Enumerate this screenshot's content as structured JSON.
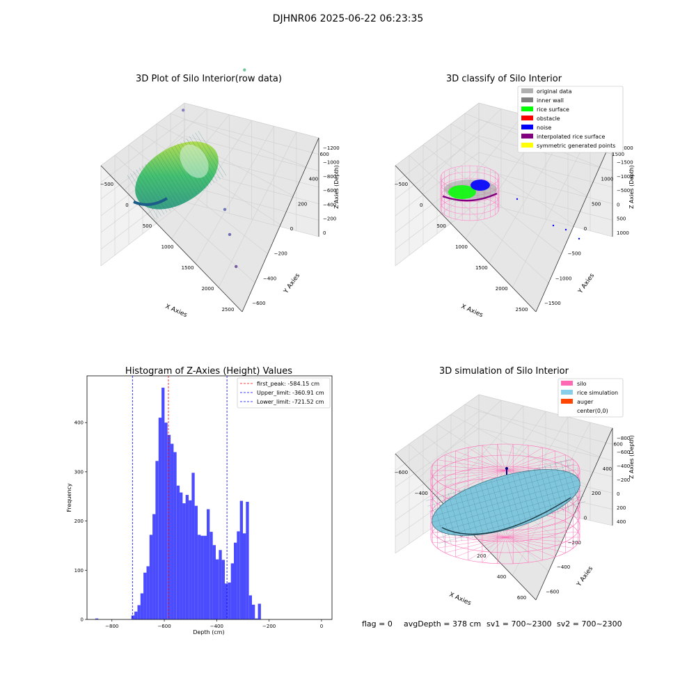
{
  "suptitle": "DJHNR06 2025-06-22 06:23:35",
  "footer": {
    "flag": "flag = 0",
    "avg_depth": "avgDepth = 378 cm",
    "sv1": "sv1 = 700~2300",
    "sv2": "sv2 = 700~2300"
  },
  "chart_data": [
    {
      "id": "raw",
      "type": "scatter",
      "projection": "3d",
      "title": "3D Plot of Silo Interior(row data)",
      "xlabel": "X Axies",
      "ylabel": "Y Axies",
      "zlabel": "Z Axies (Depth)",
      "xticks": [
        "−500",
        "0",
        "500",
        "1000",
        "1500",
        "2000",
        "2500"
      ],
      "yticks": [
        "−600",
        "−400",
        "−200",
        "0",
        "200",
        "400",
        "600"
      ],
      "zticks": [
        "0",
        "−200",
        "−400",
        "−600",
        "−800",
        "−1000",
        "−1200"
      ],
      "xlim": [
        -600,
        2600
      ],
      "ylim": [
        -650,
        650
      ],
      "zlim": [
        -1300,
        50
      ],
      "grid": true,
      "outliers": [
        {
          "x": 2260,
          "y": -500,
          "z": -1150
        },
        {
          "x": 1950,
          "y": -380,
          "z": -1080
        },
        {
          "x": 1700,
          "y": -280,
          "z": -1020
        },
        {
          "x": -250,
          "y": 400,
          "z": -1150
        },
        {
          "x": 1050,
          "y": 500,
          "z": -420
        }
      ]
    },
    {
      "id": "classify",
      "type": "scatter",
      "projection": "3d",
      "title": "3D classify of Silo Interior",
      "xlabel": "X Axies",
      "ylabel": "Y Axies",
      "zlabel": "Z Axies (Depth)",
      "xticks": [
        "−500",
        "0",
        "500",
        "1000",
        "1500",
        "2000",
        "2500"
      ],
      "yticks": [
        "−1500",
        "−1000",
        "−500",
        "0",
        "500",
        "1000",
        "1500"
      ],
      "zticks": [
        "1000",
        "500",
        "0",
        "−500",
        "−1000",
        "−1500",
        "−2000"
      ],
      "xlim": [
        -600,
        2600
      ],
      "ylim": [
        -1600,
        1600
      ],
      "zlim": [
        -2000,
        1000
      ],
      "grid": true,
      "legend": {
        "placement": "upper right",
        "entries": [
          {
            "label": "original data",
            "color": "#b0b0b0"
          },
          {
            "label": "inner wall",
            "color": "#808080"
          },
          {
            "label": "rice surface",
            "color": "#00ff00"
          },
          {
            "label": "obstacle",
            "color": "#ff0000"
          },
          {
            "label": "noise",
            "color": "#0000ff"
          },
          {
            "label": "interpolated rice surface",
            "color": "#800080"
          },
          {
            "label": "symmetric generated points",
            "color": "#ffff00"
          }
        ]
      }
    },
    {
      "id": "hist",
      "type": "bar",
      "title": "Histogram of Z-Axies (Height) Values",
      "xlabel": "Depth (cm)",
      "ylabel": "Frequency",
      "xlim": [
        -895,
        40
      ],
      "ylim": [
        0,
        495
      ],
      "xticks": [
        -800,
        -600,
        -400,
        -200,
        0
      ],
      "yticks": [
        0,
        100,
        200,
        300,
        400
      ],
      "bar_color": "#0000ff",
      "bins": {
        "start": -863.5,
        "width": 11.5,
        "counts": [
          2,
          0,
          0,
          0,
          0,
          0,
          0,
          0,
          0,
          0,
          0,
          0,
          8,
          16,
          29,
          53,
          95,
          108,
          172,
          214,
          322,
          410,
          471,
          400,
          375,
          357,
          340,
          272,
          258,
          236,
          253,
          242,
          298,
          231,
          172,
          170,
          170,
          224,
          178,
          151,
          122,
          141,
          121,
          73,
          75,
          114,
          156,
          179,
          241,
          175,
          239,
          49,
          30,
          2,
          32
        ]
      },
      "vlines": [
        {
          "x": -584.15,
          "color": "#ff0000",
          "label": "first_peak: -584.15 cm"
        },
        {
          "x": -360.91,
          "color": "#0000ff",
          "label": "Upper_limit: -360.91 cm"
        },
        {
          "x": -721.52,
          "color": "#0000ff",
          "label": "Lower_limit: -721.52 cm"
        }
      ],
      "legend": {
        "placement": "upper right"
      }
    },
    {
      "id": "sim",
      "type": "surface",
      "projection": "3d",
      "title": "3D simulation of Silo Interior",
      "xlabel": "X Axies",
      "ylabel": "Y Axies",
      "zlabel": "Z Axies (Depth)",
      "xticks": [
        "−600",
        "−400",
        "−200",
        "0",
        "200",
        "400",
        "600"
      ],
      "yticks": [
        "−600",
        "−400",
        "−200",
        "0",
        "200",
        "400",
        "600"
      ],
      "zticks": [
        "400",
        "200",
        "0",
        "−200",
        "−400",
        "−600",
        "−800"
      ],
      "xlim": [
        -700,
        700
      ],
      "ylim": [
        -700,
        700
      ],
      "zlim": [
        -900,
        450
      ],
      "grid": true,
      "legend": {
        "placement": "upper right",
        "entries": [
          {
            "label": "silo",
            "color": "#ff69b4"
          },
          {
            "label": "rice simulation",
            "color": "#87ceeb"
          },
          {
            "label": "auger",
            "color": "#ff4500"
          },
          {
            "label": "center(0,0)",
            "color": ""
          }
        ]
      }
    }
  ]
}
